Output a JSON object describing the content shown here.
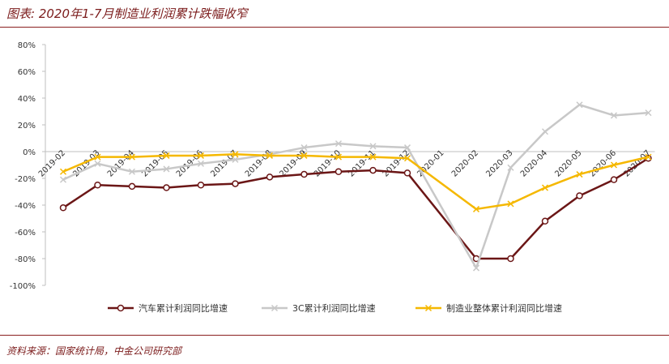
{
  "header": {
    "title": "图表: 2020年1-7月制造业利润累计跌幅收窄"
  },
  "footer": {
    "source": "资料来源：国家统计局，中金公司研究部"
  },
  "chart_data": {
    "type": "line",
    "x": [
      "2019-02",
      "2019-03",
      "2019-04",
      "2019-05",
      "2019-06",
      "2019-07",
      "2019-08",
      "2019-09",
      "2019-10",
      "2019-11",
      "2019-12",
      "2020-01",
      "2020-02",
      "2020-03",
      "2020-04",
      "2020-05",
      "2020-06",
      "2020-07"
    ],
    "series": [
      {
        "name": "汽车累计利润同比增速",
        "color": "#6b1616",
        "marker": "circle",
        "values": [
          -42,
          -25,
          -26,
          -27,
          -25,
          -24,
          -19,
          -17,
          -15,
          -14,
          -16,
          null,
          -80,
          -80,
          -52,
          -33,
          -21,
          -5
        ]
      },
      {
        "name": "3C累计利润同比增速",
        "color": "#c8c8c8",
        "marker": "x",
        "values": [
          -21,
          -9,
          -15,
          -13,
          -9,
          -6,
          -2,
          3,
          6,
          4,
          3,
          null,
          -87,
          -12,
          15,
          35,
          27,
          29
        ]
      },
      {
        "name": "制造业整体累计利润同比增速",
        "color": "#f5b800",
        "marker": "x",
        "values": [
          -15,
          -4,
          -4,
          -3,
          -3,
          -2,
          -3,
          -3,
          -4,
          -4,
          -5,
          null,
          -43,
          -39,
          -27,
          -17,
          -10,
          -4
        ]
      }
    ],
    "yticks": [
      "80%",
      "60%",
      "40%",
      "20%",
      "0%",
      "-20%",
      "-40%",
      "-60%",
      "-80%",
      "-100%"
    ],
    "ylim": [
      -100,
      80
    ],
    "grid": false,
    "legend": "bottom"
  }
}
